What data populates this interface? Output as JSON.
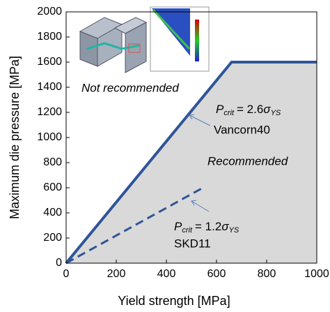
{
  "chart_data": {
    "type": "line",
    "xlabel": "Yield strength [MPa]",
    "ylabel": "Maximum die pressure [MPa]",
    "xlim": [
      0,
      1000
    ],
    "xticks": [
      0,
      200,
      400,
      600,
      800,
      1000
    ],
    "ylim": [
      0,
      2000
    ],
    "yticks": [
      0,
      200,
      400,
      600,
      800,
      1000,
      1200,
      1400,
      1600,
      1800,
      2000
    ],
    "fill_color": "#d9d9d9",
    "series": [
      {
        "name": "Vancorn40",
        "color": "#2f5597",
        "style": "solid",
        "x": [
          0,
          660,
          1000
        ],
        "values": [
          0,
          1600,
          1600
        ]
      },
      {
        "name": "SKD11",
        "color": "#2f5597",
        "style": "dashed",
        "x": [
          0,
          555
        ],
        "values": [
          0,
          610
        ]
      }
    ],
    "annotations": {
      "not_recommended": "Not recommended",
      "recommended": "Recommended",
      "formula_high": {
        "symbol": "P",
        "subscript": "crit",
        "operator": "= 2.6",
        "sigma": "σ",
        "sigma_subscript": "YS"
      },
      "formula_low": {
        "symbol": "P",
        "subscript": "crit",
        "operator": "= 1.2",
        "sigma": "σ",
        "sigma_subscript": "YS"
      }
    }
  }
}
